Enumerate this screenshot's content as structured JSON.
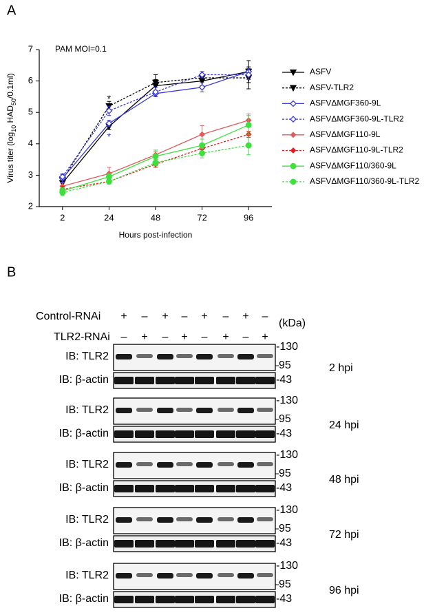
{
  "panel_a_label": "A",
  "chart_data": {
    "type": "line",
    "title": "PAM  MOI=0.1",
    "y_label_parts": [
      "Virus titer (log",
      "10",
      " HAD",
      "50",
      "/0.1ml)"
    ],
    "x_label": "Hours post-infection",
    "categories": [
      "2",
      "24",
      "48",
      "72",
      "96"
    ],
    "ylim": [
      2,
      7
    ],
    "yticks": [
      2,
      3,
      4,
      5,
      6,
      7
    ],
    "series": [
      {
        "name": "ASFV",
        "color": "#000000",
        "dashed": false,
        "marker": "triangle-down",
        "values": [
          2.75,
          4.55,
          5.85,
          6.0,
          6.3
        ],
        "errors": [
          0.12,
          0.1,
          0.35,
          0.15,
          0.35
        ]
      },
      {
        "name": "ASFV-TLR2",
        "color": "#000000",
        "dashed": true,
        "marker": "triangle-down",
        "values": [
          2.85,
          5.2,
          5.95,
          6.1,
          6.1
        ],
        "errors": [
          0.1,
          0.15,
          0.1,
          0.1,
          0.35
        ]
      },
      {
        "name": "ASFVΔMGF360-9L",
        "color": "#3a3ad8",
        "dashed": false,
        "marker": "diamond-open",
        "values": [
          2.9,
          4.65,
          5.6,
          5.8,
          6.3
        ],
        "errors": [
          0.12,
          0.1,
          0.1,
          0.15,
          0.1
        ]
      },
      {
        "name": "ASFVΔMGF360-9L-TLR2",
        "color": "#3a3ad8",
        "dashed": true,
        "marker": "diamond-open",
        "values": [
          2.95,
          5.05,
          5.65,
          6.2,
          6.2
        ],
        "errors": [
          0.1,
          0.15,
          0.15,
          0.1,
          0.15
        ]
      },
      {
        "name": "ASFVΔMGF110-9L",
        "color": "#e05a5a",
        "dashed": false,
        "marker": "diamond",
        "values": [
          2.65,
          3.05,
          3.65,
          4.3,
          4.75
        ],
        "errors": [
          0.1,
          0.2,
          0.1,
          0.28,
          0.2
        ]
      },
      {
        "name": "ASFVΔMGF110-9L-TLR2",
        "color": "#e02020",
        "dashed": true,
        "marker": "diamond",
        "values": [
          2.55,
          2.8,
          3.35,
          3.85,
          4.3
        ],
        "errors": [
          0.1,
          0.08,
          0.1,
          0.15,
          0.1
        ]
      },
      {
        "name": "ASFVΔMGF110/360-9L",
        "color": "#3ee03e",
        "dashed": false,
        "marker": "circle",
        "values": [
          2.5,
          2.95,
          3.6,
          3.95,
          4.6
        ],
        "errors": [
          0.1,
          0.1,
          0.2,
          0.2,
          0.3
        ]
      },
      {
        "name": "ASFVΔMGF110/360-9L-TLR2",
        "color": "#3ee03e",
        "dashed": true,
        "marker": "circle",
        "values": [
          2.45,
          2.8,
          3.4,
          3.7,
          3.95
        ],
        "errors": [
          0.1,
          0.08,
          0.1,
          0.15,
          0.3
        ]
      }
    ],
    "annotations": [
      {
        "text": "*",
        "category": 1,
        "y": 5.5,
        "color": "#000000"
      },
      {
        "text": "*",
        "category": 1,
        "y": 4.3,
        "color": "#3a3ad8"
      }
    ]
  },
  "panel_b": {
    "label": "B",
    "control_label": "Control-RNAi",
    "control_signs": [
      "+",
      "–",
      "+",
      "–",
      "+",
      "–",
      "+",
      "–"
    ],
    "tlr2_label": "TLR2-RNAi",
    "tlr2_signs": [
      "–",
      "+",
      "–",
      "+",
      "–",
      "+",
      "–",
      "+"
    ],
    "kda_label": "(kDa)",
    "blots": [
      {
        "timepoint": "2 hpi",
        "tlr2_label": "IB: TLR2",
        "actin_label": "IB: β-actin",
        "marker_high": "-130",
        "marker_low": "95",
        "marker_actin": "-43"
      },
      {
        "timepoint": "24 hpi",
        "tlr2_label": "IB: TLR2",
        "actin_label": "IB: β-actin",
        "marker_high": "-130",
        "marker_low": "95",
        "marker_actin": "-43"
      },
      {
        "timepoint": "48 hpi",
        "tlr2_label": "IB: TLR2",
        "actin_label": "IB: β-actin",
        "marker_high": "-130",
        "marker_low": "95",
        "marker_actin": "-43"
      },
      {
        "timepoint": "72 hpi",
        "tlr2_label": "IB: TLR2",
        "actin_label": "IB: β-actin",
        "marker_high": "-130",
        "marker_low": "95",
        "marker_actin": "-43"
      },
      {
        "timepoint": "96 hpi",
        "tlr2_label": "IB: TLR2",
        "actin_label": "IB: β-actin",
        "marker_high": "-130",
        "marker_low": "95",
        "marker_actin": "-43"
      }
    ]
  }
}
